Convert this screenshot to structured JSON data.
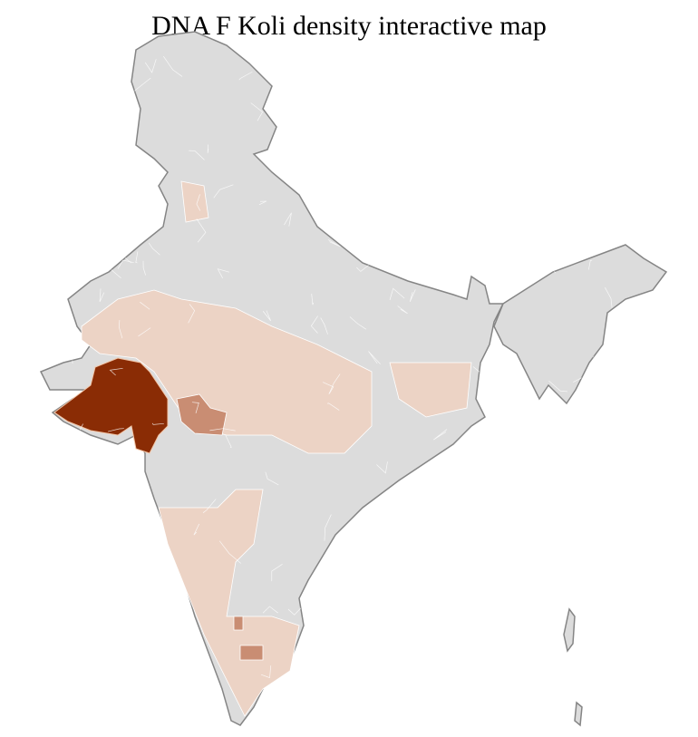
{
  "title": "DNA F Koli density interactive map",
  "colors": {
    "background_region": "#dcdcdc",
    "border": "#858585",
    "district_line": "#ffffff",
    "low": "#ecd3c5",
    "medium": "#c98d73",
    "high": "#8a2c05"
  }
}
